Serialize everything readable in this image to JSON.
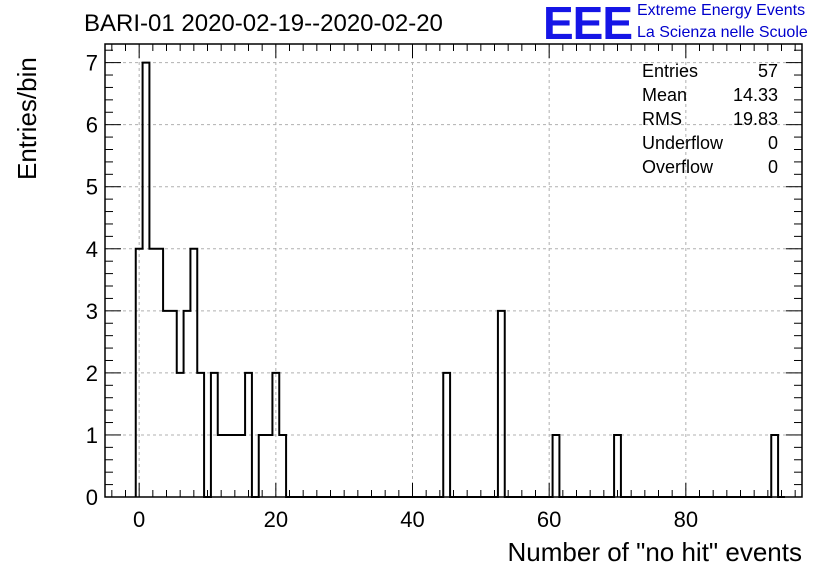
{
  "chart_data": {
    "type": "bar",
    "title": "BARI-01 2020-02-19--2020-02-20",
    "xlabel": "Number of \"no hit\" events",
    "ylabel": "Entries/bin",
    "xlim": [
      -5,
      97
    ],
    "ylim": [
      0,
      7.3
    ],
    "bin_width": 1,
    "grid": true,
    "x_ticks": [
      0,
      20,
      40,
      60,
      80
    ],
    "y_ticks": [
      0,
      1,
      2,
      3,
      4,
      5,
      6,
      7
    ],
    "bins": [
      {
        "x": -0.5,
        "value": 4
      },
      {
        "x": 0.5,
        "value": 7
      },
      {
        "x": 1.5,
        "value": 4
      },
      {
        "x": 2.5,
        "value": 4
      },
      {
        "x": 3.5,
        "value": 3
      },
      {
        "x": 4.5,
        "value": 3
      },
      {
        "x": 5.5,
        "value": 2
      },
      {
        "x": 6.5,
        "value": 3
      },
      {
        "x": 7.5,
        "value": 4
      },
      {
        "x": 8.5,
        "value": 2
      },
      {
        "x": 9.5,
        "value": 0
      },
      {
        "x": 10.5,
        "value": 2
      },
      {
        "x": 11.5,
        "value": 1
      },
      {
        "x": 12.5,
        "value": 1
      },
      {
        "x": 13.5,
        "value": 1
      },
      {
        "x": 14.5,
        "value": 1
      },
      {
        "x": 15.5,
        "value": 2
      },
      {
        "x": 16.5,
        "value": 0
      },
      {
        "x": 17.5,
        "value": 1
      },
      {
        "x": 18.5,
        "value": 1
      },
      {
        "x": 19.5,
        "value": 2
      },
      {
        "x": 20.5,
        "value": 1
      },
      {
        "x": 44.5,
        "value": 2
      },
      {
        "x": 52.5,
        "value": 3
      },
      {
        "x": 60.5,
        "value": 1
      },
      {
        "x": 69.5,
        "value": 1
      },
      {
        "x": 92.5,
        "value": 1
      }
    ],
    "stats": [
      {
        "label": "Entries",
        "value": "57"
      },
      {
        "label": "Mean",
        "value": "14.33"
      },
      {
        "label": "RMS",
        "value": "19.83"
      },
      {
        "label": "Underflow",
        "value": "0"
      },
      {
        "label": "Overflow",
        "value": "0"
      }
    ]
  },
  "logo": {
    "text": "EEE",
    "line1": "Extreme Energy Events",
    "line2": "La Scienza nelle Scuole",
    "color": "#1515e6"
  }
}
